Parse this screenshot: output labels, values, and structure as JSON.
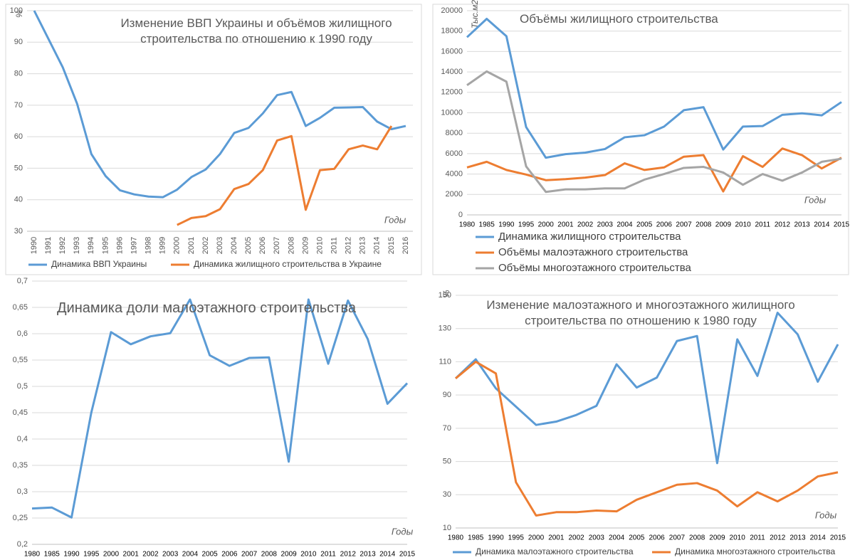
{
  "chart_data": [
    {
      "type": "line",
      "title": "Изменение ВВП Украины и объёмов жилищного строительства по отношению к 1990 году",
      "ylabel": "%",
      "xlabel": "Годы",
      "categories": [
        "1990",
        "1991",
        "1992",
        "1993",
        "1994",
        "1995",
        "1996",
        "1997",
        "1998",
        "1999",
        "2000",
        "2001",
        "2002",
        "2003",
        "2004",
        "2005",
        "2006",
        "2007",
        "2008",
        "2009",
        "2010",
        "2011",
        "2012",
        "2013",
        "2014",
        "2015",
        "2016"
      ],
      "series": [
        {
          "name": "Динамика ВВП Украины",
          "color": "#5b9bd5",
          "values": [
            100,
            91,
            82,
            70.5,
            54.5,
            47.5,
            43,
            41.7,
            41,
            40.8,
            43.2,
            47.2,
            49.6,
            54.5,
            61.2,
            62.8,
            67.4,
            73.2,
            74.2,
            63.4,
            66,
            69.2,
            69.3,
            69.4,
            64.8,
            62.4,
            63.4
          ]
        },
        {
          "name": "Динамика жилищного строительства в Украине",
          "color": "#ed7d31",
          "values": [
            null,
            null,
            null,
            null,
            null,
            null,
            null,
            null,
            null,
            null,
            32,
            34.2,
            34.8,
            37,
            43.4,
            45,
            49.4,
            58.8,
            60.2,
            36.8,
            49.4,
            49.8,
            56,
            57.2,
            56,
            63.4,
            null
          ]
        }
      ],
      "ylim": [
        30,
        100
      ],
      "yticks": [
        30,
        40,
        50,
        60,
        70,
        80,
        90,
        100
      ],
      "grid": true,
      "legend": "bottom"
    },
    {
      "type": "line",
      "title": "Объёмы жилищного строительства",
      "ylabel": "Тыс.м2",
      "xlabel": "Годы",
      "categories": [
        "1980",
        "1985",
        "1990",
        "1995",
        "2000",
        "2001",
        "2002",
        "2003",
        "2004",
        "2005",
        "2006",
        "2007",
        "2008",
        "2009",
        "2010",
        "2011",
        "2012",
        "2013",
        "2014",
        "2015"
      ],
      "series": [
        {
          "name": "Динамика жилищного строительства",
          "color": "#5b9bd5",
          "values": [
            17400,
            19200,
            17500,
            8600,
            5600,
            5950,
            6100,
            6450,
            7600,
            7800,
            8650,
            10250,
            10550,
            6400,
            8650,
            8700,
            9800,
            9950,
            9750,
            11050
          ]
        },
        {
          "name": "Объёмы малоэтажного строительства",
          "color": "#ed7d31",
          "values": [
            4650,
            5200,
            4400,
            3950,
            3400,
            3500,
            3650,
            3900,
            5050,
            4400,
            4650,
            5700,
            5850,
            2300,
            5750,
            4700,
            6500,
            5850,
            4550,
            5600
          ]
        },
        {
          "name": "Объёмы многоэтажного строительства",
          "color": "#a5a5a5",
          "values": [
            12700,
            14050,
            13050,
            4750,
            2250,
            2500,
            2500,
            2600,
            2600,
            3450,
            4000,
            4600,
            4700,
            4150,
            2950,
            4000,
            3350,
            4150,
            5200,
            5500
          ]
        }
      ],
      "ylim": [
        0,
        20000
      ],
      "yticks": [
        0,
        2000,
        4000,
        6000,
        8000,
        10000,
        12000,
        14000,
        16000,
        18000,
        20000
      ],
      "grid": true,
      "legend": "bottom"
    },
    {
      "type": "line",
      "title": "Динамика доли малоэтажного строительства",
      "xlabel": "Годы",
      "categories": [
        "1980",
        "1985",
        "1990",
        "1995",
        "2000",
        "2001",
        "2002",
        "2003",
        "2004",
        "2005",
        "2006",
        "2007",
        "2008",
        "2009",
        "2010",
        "2011",
        "2012",
        "2013",
        "2014",
        "2015"
      ],
      "series": [
        {
          "color": "#5b9bd5",
          "values": [
            0.268,
            0.27,
            0.251,
            0.45,
            0.603,
            0.58,
            0.595,
            0.601,
            0.665,
            0.559,
            0.539,
            0.554,
            0.555,
            0.357,
            0.665,
            0.543,
            0.663,
            0.59,
            0.467,
            0.506
          ]
        }
      ],
      "ylim": [
        0.2,
        0.7
      ],
      "yticks": [
        {
          "value": 0.2,
          "label": "0,2"
        },
        {
          "value": 0.25,
          "label": "0,25"
        },
        {
          "value": 0.3,
          "label": "0,3"
        },
        {
          "value": 0.35,
          "label": "0,35"
        },
        {
          "value": 0.4,
          "label": "0,4"
        },
        {
          "value": 0.45,
          "label": "0,45"
        },
        {
          "value": 0.5,
          "label": "0,5"
        },
        {
          "value": 0.55,
          "label": "0,55"
        },
        {
          "value": 0.6,
          "label": "0,6"
        },
        {
          "value": 0.65,
          "label": "0,65"
        },
        {
          "value": 0.7,
          "label": "0,7"
        }
      ],
      "grid": true
    },
    {
      "type": "line",
      "title": "Изменение малоэтажного и многоэтажного жилищного строительства по отношению к 1980 году",
      "ylabel": "%",
      "xlabel": "Годы",
      "categories": [
        "1980",
        "1985",
        "1990",
        "1995",
        "2000",
        "2001",
        "2002",
        "2003",
        "2004",
        "2005",
        "2006",
        "2007",
        "2008",
        "2009",
        "2010",
        "2011",
        "2012",
        "2013",
        "2014",
        "2015"
      ],
      "series": [
        {
          "name": "Динамика малоэтажного строительства",
          "color": "#5b9bd5",
          "values": [
            100,
            111.5,
            94,
            83,
            72,
            74,
            78,
            83.5,
            108.5,
            94.5,
            100.5,
            122.5,
            125.5,
            49,
            123.5,
            101.5,
            139.5,
            126.5,
            98,
            120.5
          ]
        },
        {
          "name": "Динамика многоэтажного строительства",
          "color": "#ed7d31",
          "values": [
            100,
            110,
            103,
            37.5,
            17.5,
            19.5,
            19.5,
            20.5,
            20,
            27,
            31.5,
            36,
            37,
            32.5,
            23,
            31.5,
            26,
            32.5,
            41,
            43.5
          ]
        }
      ],
      "ylim": [
        10,
        150
      ],
      "yticks": [
        10,
        30,
        50,
        70,
        90,
        110,
        130,
        150
      ],
      "grid": true,
      "legend": "bottom"
    }
  ]
}
